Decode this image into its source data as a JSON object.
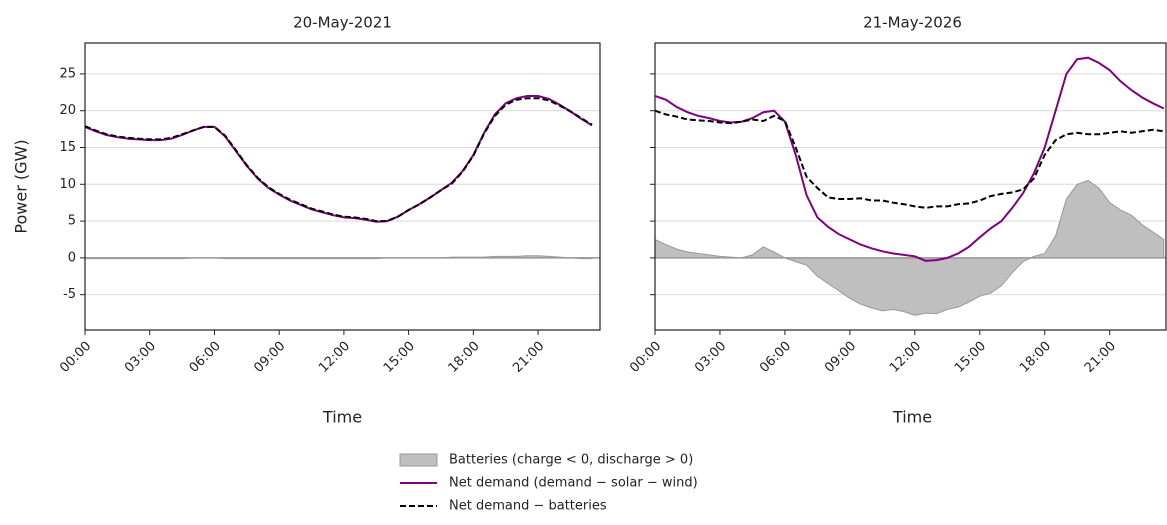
{
  "chart_data": [
    {
      "type": "line",
      "title": "20-May-2021",
      "xlabel": "Time",
      "ylabel": "Power (GW)",
      "x": [
        0,
        0.5,
        1,
        1.5,
        2,
        2.5,
        3,
        3.5,
        4,
        4.5,
        5,
        5.5,
        6,
        6.5,
        7,
        7.5,
        8,
        8.5,
        9,
        9.5,
        10,
        10.5,
        11,
        11.5,
        12,
        12.5,
        13,
        13.5,
        14,
        14.5,
        15,
        15.5,
        16,
        16.5,
        17,
        17.5,
        18,
        18.5,
        19,
        19.5,
        20,
        20.5,
        21,
        21.5,
        22,
        22.5,
        23,
        23.5
      ],
      "xlim": [
        0,
        23.87
      ],
      "xticks": [
        {
          "value": 0,
          "label": "00:00"
        },
        {
          "value": 3,
          "label": "03:00"
        },
        {
          "value": 6,
          "label": "06:00"
        },
        {
          "value": 9,
          "label": "09:00"
        },
        {
          "value": 12,
          "label": "12:00"
        },
        {
          "value": 15,
          "label": "15:00"
        },
        {
          "value": 18,
          "label": "18:00"
        },
        {
          "value": 21,
          "label": "21:00"
        }
      ],
      "ylim": [
        -9.8,
        29.2
      ],
      "yticks": [
        -5,
        0,
        5,
        10,
        15,
        20,
        25
      ],
      "ytick_labels": true,
      "grid": true,
      "series": [
        {
          "name": "Batteries (charge < 0, discharge > 0)",
          "style": "area",
          "color": "#bfbfbf",
          "values": [
            -0.1,
            -0.1,
            -0.1,
            -0.1,
            -0.1,
            -0.1,
            -0.1,
            -0.1,
            -0.1,
            -0.1,
            0,
            0,
            0,
            -0.1,
            -0.1,
            -0.1,
            -0.1,
            -0.1,
            -0.1,
            -0.1,
            -0.1,
            -0.1,
            -0.1,
            -0.1,
            -0.1,
            -0.1,
            -0.1,
            -0.1,
            0,
            0,
            0,
            0,
            0,
            0,
            0.1,
            0.1,
            0.1,
            0.1,
            0.2,
            0.2,
            0.2,
            0.3,
            0.3,
            0.2,
            0.1,
            0,
            -0.1,
            -0.1
          ]
        },
        {
          "name": "Net demand (demand − solar − wind)",
          "style": "solid",
          "color": "#800080",
          "values": [
            17.8,
            17.2,
            16.7,
            16.4,
            16.2,
            16.1,
            16.0,
            16.0,
            16.2,
            16.7,
            17.3,
            17.8,
            17.8,
            16.5,
            14.5,
            12.5,
            10.8,
            9.5,
            8.6,
            7.8,
            7.2,
            6.6,
            6.2,
            5.8,
            5.5,
            5.4,
            5.2,
            4.9,
            5.0,
            5.6,
            6.5,
            7.3,
            8.2,
            9.2,
            10.2,
            11.8,
            14.0,
            17.0,
            19.5,
            21.0,
            21.7,
            22.0,
            22.0,
            21.6,
            20.8,
            19.9,
            18.9,
            18.0
          ]
        },
        {
          "name": "Net demand − batteries",
          "style": "dashed",
          "color": "#000000",
          "values": [
            17.9,
            17.3,
            16.8,
            16.5,
            16.3,
            16.2,
            16.1,
            16.1,
            16.3,
            16.8,
            17.3,
            17.8,
            17.8,
            16.6,
            14.6,
            12.6,
            10.9,
            9.6,
            8.7,
            7.9,
            7.3,
            6.7,
            6.3,
            5.9,
            5.6,
            5.5,
            5.3,
            5.0,
            5.0,
            5.6,
            6.5,
            7.3,
            8.2,
            9.2,
            10.1,
            11.7,
            13.9,
            16.9,
            19.3,
            20.8,
            21.5,
            21.7,
            21.7,
            21.4,
            20.7,
            19.9,
            19.0,
            18.1
          ]
        }
      ]
    },
    {
      "type": "line",
      "title": "21-May-2026",
      "xlabel": "Time",
      "x": [
        0,
        0.5,
        1,
        1.5,
        2,
        2.5,
        3,
        3.5,
        4,
        4.5,
        5,
        5.5,
        6,
        6.5,
        7,
        7.5,
        8,
        8.5,
        9,
        9.5,
        10,
        10.5,
        11,
        11.5,
        12,
        12.5,
        13,
        13.5,
        14,
        14.5,
        15,
        15.5,
        16,
        16.5,
        17,
        17.5,
        18,
        18.5,
        19,
        19.5,
        20,
        20.5,
        21,
        21.5,
        22,
        22.5,
        23,
        23.5
      ],
      "xlim": [
        0,
        23.6
      ],
      "xticks": [
        {
          "value": 0,
          "label": "00:00"
        },
        {
          "value": 3,
          "label": "03:00"
        },
        {
          "value": 6,
          "label": "06:00"
        },
        {
          "value": 9,
          "label": "09:00"
        },
        {
          "value": 12,
          "label": "12:00"
        },
        {
          "value": 15,
          "label": "15:00"
        },
        {
          "value": 18,
          "label": "18:00"
        },
        {
          "value": 21,
          "label": "21:00"
        }
      ],
      "ylim": [
        -9.8,
        29.2
      ],
      "yticks": [
        -5,
        0,
        5,
        10,
        15,
        20,
        25
      ],
      "ytick_labels": false,
      "grid": true,
      "series": [
        {
          "style": "area",
          "color": "#bfbfbf",
          "values": [
            2.5,
            1.8,
            1.2,
            0.8,
            0.6,
            0.4,
            0.2,
            0.1,
            0.0,
            0.4,
            1.5,
            0.8,
            0.0,
            -0.5,
            -1.0,
            -2.5,
            -3.5,
            -4.5,
            -5.5,
            -6.3,
            -6.8,
            -7.2,
            -7.0,
            -7.3,
            -7.8,
            -7.5,
            -7.6,
            -7.0,
            -6.7,
            -6.0,
            -5.2,
            -4.8,
            -3.8,
            -2.0,
            -0.5,
            0.2,
            0.6,
            3.0,
            8.0,
            10.0,
            10.5,
            9.5,
            7.5,
            6.5,
            5.8,
            4.5,
            3.5,
            2.5
          ]
        },
        {
          "style": "solid",
          "color": "#800080",
          "values": [
            22.0,
            21.5,
            20.5,
            19.8,
            19.3,
            19.0,
            18.6,
            18.4,
            18.5,
            19.0,
            19.8,
            20.0,
            18.5,
            14.0,
            8.5,
            5.5,
            4.2,
            3.2,
            2.5,
            1.8,
            1.3,
            0.9,
            0.6,
            0.4,
            0.2,
            -0.4,
            -0.3,
            0.0,
            0.6,
            1.5,
            2.8,
            4.0,
            5.0,
            6.8,
            8.8,
            11.5,
            15.0,
            20.0,
            25.0,
            27.0,
            27.2,
            26.5,
            25.5,
            24.0,
            22.8,
            21.8,
            21.0,
            20.3
          ]
        },
        {
          "style": "dashed",
          "color": "#000000",
          "values": [
            20.0,
            19.5,
            19.2,
            18.8,
            18.7,
            18.6,
            18.4,
            18.3,
            18.5,
            18.8,
            18.6,
            19.3,
            18.6,
            15.0,
            11.0,
            9.5,
            8.2,
            8.0,
            8.0,
            8.1,
            7.8,
            7.8,
            7.5,
            7.3,
            7.0,
            6.8,
            7.0,
            7.0,
            7.3,
            7.4,
            7.8,
            8.4,
            8.7,
            8.9,
            9.3,
            10.8,
            14.0,
            16.0,
            16.8,
            17.0,
            16.8,
            16.8,
            17.0,
            17.2,
            17.0,
            17.2,
            17.4,
            17.2
          ]
        }
      ]
    }
  ]
}
